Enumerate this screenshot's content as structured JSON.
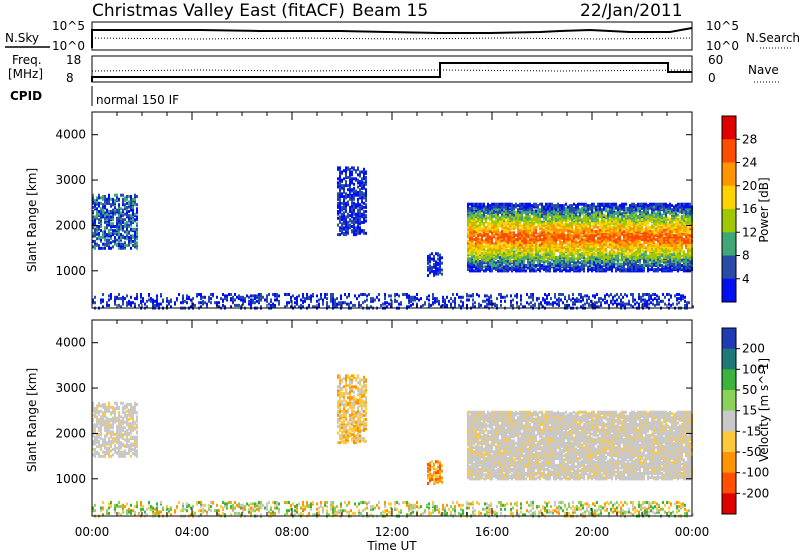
{
  "header": {
    "title": "Christmas Valley East (fitACF)",
    "beam": "Beam 15",
    "date": "22/Jan/2011"
  },
  "top_panels": {
    "nsky_label": "N.Sky",
    "nsky_ticks": [
      "10^5",
      "10^0"
    ],
    "nsearch_label": "N.Search",
    "nsearch_ticks": [
      "10^5",
      "10^0"
    ],
    "freq_label_1": "Freq.",
    "freq_label_2": "[MHz]",
    "freq_ticks": [
      "18",
      "8"
    ],
    "nave_label": "Nave",
    "nave_ticks": [
      "60",
      "0"
    ],
    "cpid_label": "CPID",
    "cpid_text": "normal 150 IF"
  },
  "power_colorbar": {
    "label": "Power [dB]",
    "ticks": [
      "28",
      "24",
      "20",
      "16",
      "12",
      "8",
      "4"
    ],
    "colors": [
      "#e00000",
      "#ff4d00",
      "#ff9600",
      "#ffd200",
      "#a0c800",
      "#40a878",
      "#284ba8",
      "#0010f0"
    ]
  },
  "velocity_colorbar": {
    "label": "Velocity [m s^-1]",
    "ticks": [
      "200",
      "100",
      "50",
      "15",
      "-15",
      "-50",
      "-100",
      "-200"
    ],
    "colors": [
      "#203cb4",
      "#1e7878",
      "#3cb43c",
      "#8cd25a",
      "#c8c8c8",
      "#ffc83c",
      "#ff9600",
      "#ff5000",
      "#e00000"
    ]
  },
  "chart_data": [
    {
      "type": "heatmap",
      "panel": "power",
      "ylabel": "Slant Range [km]",
      "xlabel": "",
      "yticks": [
        "4000",
        "3000",
        "2000",
        "1000"
      ],
      "ylim": [
        180,
        4500
      ],
      "xlim": [
        0,
        24
      ],
      "echo_regions": [
        {
          "x": [
            0.0,
            1.8
          ],
          "y": [
            1500,
            2700
          ],
          "power": "low-mid"
        },
        {
          "x": [
            9.8,
            11.0
          ],
          "y": [
            1800,
            3300
          ],
          "power": "low"
        },
        {
          "x": [
            13.4,
            14.0
          ],
          "y": [
            900,
            1400
          ],
          "power": "low"
        },
        {
          "x": [
            15.0,
            24.0
          ],
          "y": [
            1000,
            2500
          ],
          "power": "mid-high"
        },
        {
          "x": [
            0.0,
            24.0
          ],
          "y": [
            180,
            500
          ],
          "power": "low"
        }
      ]
    },
    {
      "type": "heatmap",
      "panel": "velocity",
      "ylabel": "Slant Range [km]",
      "xlabel": "Time UT",
      "xticks": [
        "00:00",
        "04:00",
        "08:00",
        "12:00",
        "16:00",
        "20:00",
        "00:00"
      ],
      "yticks": [
        "4000",
        "3000",
        "2000",
        "1000"
      ],
      "ylim": [
        180,
        4500
      ],
      "xlim": [
        0,
        24
      ],
      "echo_regions": [
        {
          "x": [
            0.0,
            1.8
          ],
          "y": [
            1500,
            2700
          ],
          "velocity": "ground scatter"
        },
        {
          "x": [
            9.8,
            11.0
          ],
          "y": [
            1800,
            3300
          ],
          "velocity": "-15 to -50"
        },
        {
          "x": [
            13.4,
            14.0
          ],
          "y": [
            900,
            1400
          ],
          "velocity": "-50 to -100"
        },
        {
          "x": [
            15.0,
            24.0
          ],
          "y": [
            1000,
            2500
          ],
          "velocity": "ground scatter"
        },
        {
          "x": [
            0.0,
            24.0
          ],
          "y": [
            180,
            500
          ],
          "velocity": "mixed"
        }
      ]
    }
  ]
}
